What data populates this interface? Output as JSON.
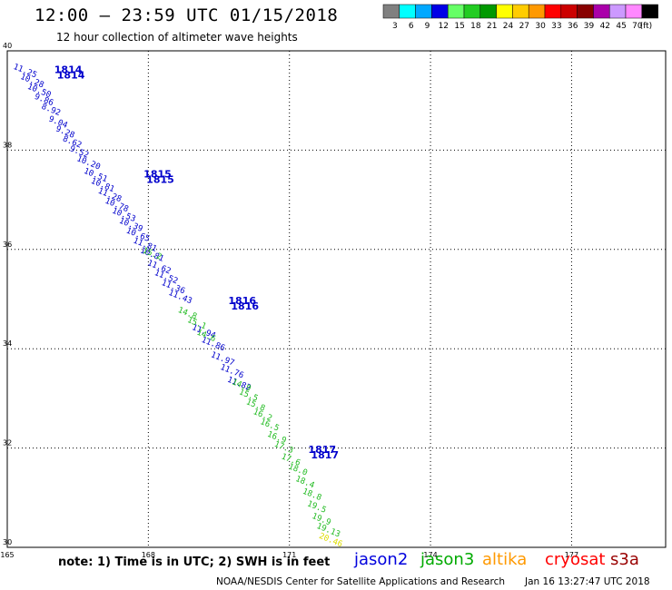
{
  "header": {
    "title": "12:00 – 23:59 UTC 01/15/2018",
    "subtitle": "12 hour collection of altimeter wave heights"
  },
  "colorbar": {
    "swatches": [
      {
        "label": "3",
        "color": "#808080"
      },
      {
        "label": "6",
        "color": "#00ffff"
      },
      {
        "label": "9",
        "color": "#00a8ff"
      },
      {
        "label": "12",
        "color": "#0000e6"
      },
      {
        "label": "15",
        "color": "#66ff66"
      },
      {
        "label": "18",
        "color": "#22cc22"
      },
      {
        "label": "21",
        "color": "#009900"
      },
      {
        "label": "24",
        "color": "#ffff00"
      },
      {
        "label": "27",
        "color": "#ffcc00"
      },
      {
        "label": "30",
        "color": "#ff9900"
      },
      {
        "label": "33",
        "color": "#ff0000"
      },
      {
        "label": "36",
        "color": "#cc0000"
      },
      {
        "label": "39",
        "color": "#880000"
      },
      {
        "label": "42",
        "color": "#aa00aa"
      },
      {
        "label": "45",
        "color": "#cc99ff"
      },
      {
        "label": "70",
        "color": "#ff88ff"
      },
      {
        "label": "",
        "color": "#000000"
      }
    ],
    "unit": "(ft)"
  },
  "footer": {
    "note": "note: 1) Time is in UTC; 2) SWH is in feet",
    "credit": "NOAA/NESDIS Center for Satellite Applications and Research",
    "timestamp": "Jan 16 13:27:47 UTC 2018",
    "satellites": [
      {
        "name": "jason2",
        "color": "#0000dd"
      },
      {
        "name": "jason3",
        "color": "#00aa00"
      },
      {
        "name": "altika",
        "color": "#ff9900"
      },
      {
        "name": "cryosat",
        "color": "#ff0000"
      },
      {
        "name": "s3a",
        "color": "#990000"
      }
    ]
  },
  "chart_data": {
    "type": "scatter",
    "xlim": [
      165,
      179
    ],
    "ylim": [
      30,
      40
    ],
    "xticks": [
      "165",
      "168",
      "171",
      "174",
      "177"
    ],
    "yticks": [
      "30",
      "32",
      "34",
      "36",
      "38",
      "40"
    ],
    "grid": true,
    "time_labels": [
      {
        "label": "1814",
        "lon": 166.0,
        "lat": 39.55
      },
      {
        "label": "1815",
        "lon": 167.9,
        "lat": 37.45
      },
      {
        "label": "1816",
        "lon": 169.7,
        "lat": 34.9
      },
      {
        "label": "1817",
        "lon": 171.4,
        "lat": 31.9
      }
    ],
    "series": [
      {
        "name": "jason2",
        "color": "#0000cc",
        "points": [
          {
            "lon": 165.1,
            "lat": 39.65,
            "swh": "11.25"
          },
          {
            "lon": 165.25,
            "lat": 39.45,
            "swh": "10.28"
          },
          {
            "lon": 165.4,
            "lat": 39.25,
            "swh": "10.50"
          },
          {
            "lon": 165.55,
            "lat": 39.05,
            "swh": "9.86"
          },
          {
            "lon": 165.7,
            "lat": 38.85,
            "swh": "8.92"
          },
          {
            "lon": 165.85,
            "lat": 38.6,
            "swh": "9.04"
          },
          {
            "lon": 166.0,
            "lat": 38.4,
            "swh": "9.28"
          },
          {
            "lon": 166.15,
            "lat": 38.2,
            "swh": "8.62"
          },
          {
            "lon": 166.3,
            "lat": 38.0,
            "swh": "9.52"
          },
          {
            "lon": 166.45,
            "lat": 37.8,
            "swh": "10.20"
          },
          {
            "lon": 166.6,
            "lat": 37.55,
            "swh": "10.51"
          },
          {
            "lon": 166.75,
            "lat": 37.35,
            "swh": "10.81"
          },
          {
            "lon": 166.9,
            "lat": 37.15,
            "swh": "11.28"
          },
          {
            "lon": 167.05,
            "lat": 36.95,
            "swh": "10.78"
          },
          {
            "lon": 167.2,
            "lat": 36.75,
            "swh": "10.53"
          },
          {
            "lon": 167.35,
            "lat": 36.55,
            "swh": "10.39"
          },
          {
            "lon": 167.5,
            "lat": 36.35,
            "swh": "10.65"
          },
          {
            "lon": 167.65,
            "lat": 36.15,
            "swh": "11.81"
          },
          {
            "lon": 167.8,
            "lat": 35.95,
            "swh": "10.81"
          },
          {
            "lon": 167.95,
            "lat": 35.7,
            "swh": "11.62"
          },
          {
            "lon": 168.1,
            "lat": 35.5,
            "swh": "11.52"
          },
          {
            "lon": 168.25,
            "lat": 35.3,
            "swh": "11.36"
          },
          {
            "lon": 168.4,
            "lat": 35.1,
            "swh": "11.43"
          },
          {
            "lon": 168.9,
            "lat": 34.4,
            "swh": "11.94"
          },
          {
            "lon": 169.1,
            "lat": 34.15,
            "swh": "11.86"
          },
          {
            "lon": 169.3,
            "lat": 33.85,
            "swh": "11.97"
          },
          {
            "lon": 169.5,
            "lat": 33.6,
            "swh": "11.76"
          },
          {
            "lon": 169.65,
            "lat": 33.35,
            "swh": "11.82"
          }
        ]
      },
      {
        "name": "jason3",
        "color": "#22bb22",
        "points": [
          {
            "lon": 167.85,
            "lat": 35.95,
            "swh": "15.2"
          },
          {
            "lon": 168.6,
            "lat": 34.75,
            "swh": "14.8"
          },
          {
            "lon": 168.8,
            "lat": 34.55,
            "swh": "15.1"
          },
          {
            "lon": 169.0,
            "lat": 34.3,
            "swh": "14.6"
          },
          {
            "lon": 169.75,
            "lat": 33.3,
            "swh": "14.9"
          },
          {
            "lon": 169.9,
            "lat": 33.1,
            "swh": "15.5"
          },
          {
            "lon": 170.05,
            "lat": 32.9,
            "swh": "15.8"
          },
          {
            "lon": 170.2,
            "lat": 32.7,
            "swh": "16.2"
          },
          {
            "lon": 170.35,
            "lat": 32.5,
            "swh": "16.5"
          },
          {
            "lon": 170.5,
            "lat": 32.25,
            "swh": "16.9"
          },
          {
            "lon": 170.65,
            "lat": 32.05,
            "swh": "17.3"
          },
          {
            "lon": 170.8,
            "lat": 31.8,
            "swh": "17.6"
          },
          {
            "lon": 170.95,
            "lat": 31.6,
            "swh": "18.0"
          },
          {
            "lon": 171.1,
            "lat": 31.35,
            "swh": "18.4"
          },
          {
            "lon": 171.25,
            "lat": 31.1,
            "swh": "18.8"
          },
          {
            "lon": 171.35,
            "lat": 30.85,
            "swh": "19.5"
          },
          {
            "lon": 171.45,
            "lat": 30.6,
            "swh": "19.9"
          },
          {
            "lon": 171.55,
            "lat": 30.4,
            "swh": "19.13"
          }
        ]
      },
      {
        "name": "jason3-high",
        "color": "#dddd00",
        "points": [
          {
            "lon": 171.6,
            "lat": 30.2,
            "swh": "20.46"
          }
        ]
      }
    ]
  }
}
